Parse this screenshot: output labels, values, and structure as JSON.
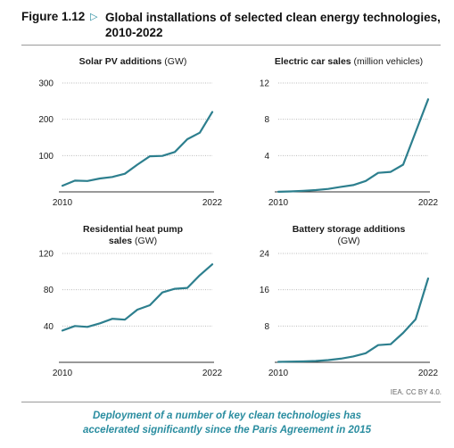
{
  "figure": {
    "label": "Figure 1.12",
    "title_line1": "Global installations of selected clean energy technologies,",
    "title_line2": "2010-2022"
  },
  "colors": {
    "line": "#2d7f8e",
    "accent": "#2a8da0",
    "grid": "#bbbbbb",
    "axis": "#333333"
  },
  "credit": "IEA. CC BY 4.0.",
  "caption": {
    "line1": "Deployment of a number of key clean technologies has",
    "line2": "accelerated significantly since the Paris Agreement in 2015"
  },
  "chart_data": [
    {
      "type": "line",
      "title_bold": "Solar PV additions",
      "title_unit": " (GW)",
      "x": [
        2010,
        2011,
        2012,
        2013,
        2014,
        2015,
        2016,
        2017,
        2018,
        2019,
        2020,
        2021,
        2022
      ],
      "values": [
        17,
        31,
        30,
        37,
        41,
        50,
        75,
        98,
        99,
        110,
        145,
        163,
        220
      ],
      "ylim": [
        0,
        300
      ],
      "yticks": [
        100,
        200,
        300
      ],
      "xtick_labels": [
        "2010",
        "2022"
      ],
      "grid": true
    },
    {
      "type": "line",
      "title_bold": "Electric car sales",
      "title_unit": " (million vehicles)",
      "x": [
        2010,
        2011,
        2012,
        2013,
        2014,
        2015,
        2016,
        2017,
        2018,
        2019,
        2020,
        2021,
        2022
      ],
      "values": [
        0.01,
        0.05,
        0.12,
        0.2,
        0.32,
        0.55,
        0.75,
        1.2,
        2.1,
        2.2,
        3.0,
        6.6,
        10.2
      ],
      "ylim": [
        0,
        12
      ],
      "yticks": [
        4,
        8,
        12
      ],
      "xtick_labels": [
        "2010",
        "2022"
      ],
      "grid": true
    },
    {
      "type": "line",
      "title_bold_line1": "Residential heat pump",
      "title_bold_line2": "sales",
      "title_unit": " (GW)",
      "x": [
        2010,
        2011,
        2012,
        2013,
        2014,
        2015,
        2016,
        2017,
        2018,
        2019,
        2020,
        2021,
        2022
      ],
      "values": [
        35,
        40,
        39,
        43,
        48,
        47,
        58,
        63,
        77,
        81,
        82,
        96,
        108
      ],
      "ylim": [
        0,
        120
      ],
      "yticks": [
        40,
        80,
        120
      ],
      "xtick_labels": [
        "2010",
        "2022"
      ],
      "grid": true
    },
    {
      "type": "line",
      "title_bold_line1": "Battery storage additions",
      "title_unit_line2": "(GW)",
      "x": [
        2010,
        2011,
        2012,
        2013,
        2014,
        2015,
        2016,
        2017,
        2018,
        2019,
        2020,
        2021,
        2022
      ],
      "values": [
        0.1,
        0.15,
        0.2,
        0.3,
        0.5,
        0.8,
        1.3,
        2.0,
        3.8,
        4.0,
        6.5,
        9.5,
        18.5
      ],
      "ylim": [
        0,
        24
      ],
      "yticks": [
        8,
        16,
        24
      ],
      "xtick_labels": [
        "2010",
        "2022"
      ],
      "grid": true
    }
  ]
}
